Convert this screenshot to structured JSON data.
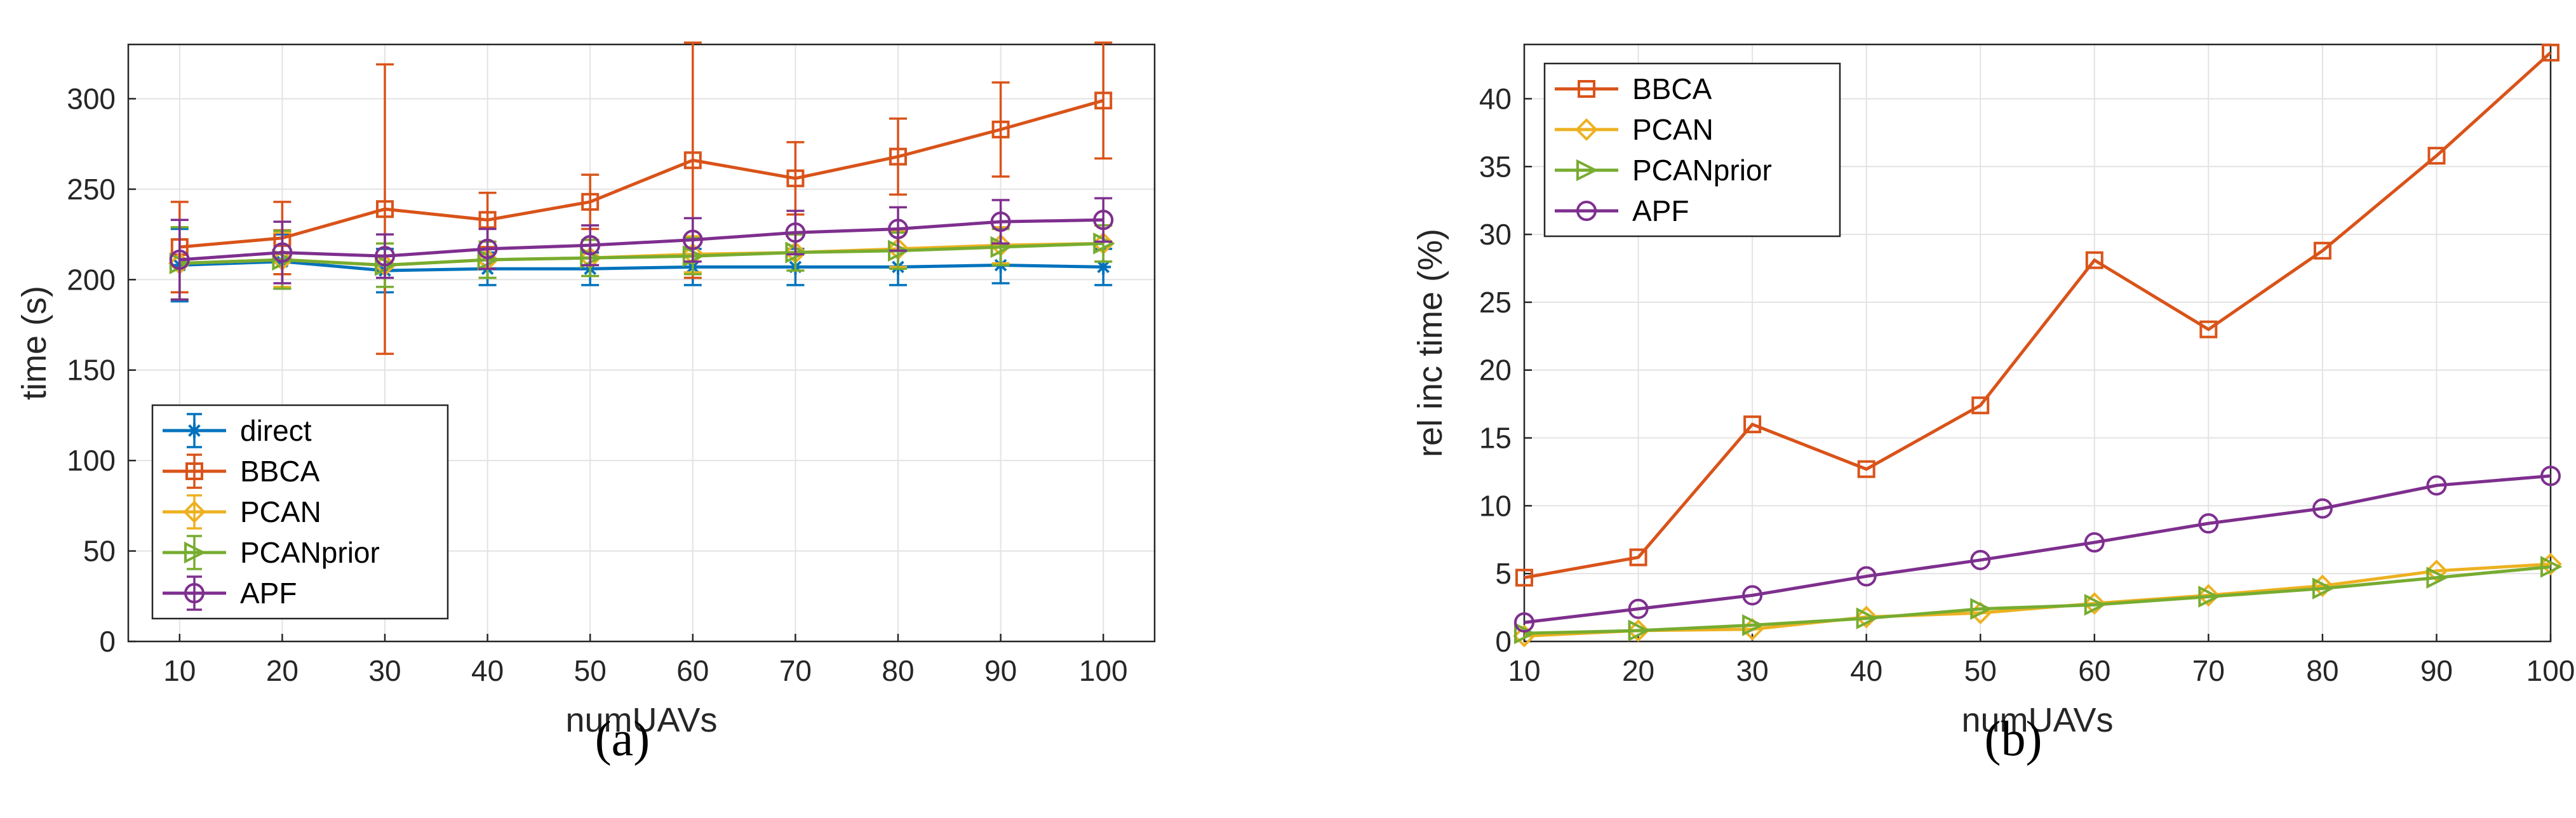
{
  "figure": {
    "captions": [
      "(a)",
      "(b)"
    ]
  },
  "series_colors": {
    "direct": "#0072BD",
    "BBCA": "#D95319",
    "PCAN": "#EDB120",
    "PCANprior": "#77AC30",
    "APF": "#7E2F8E"
  },
  "chart_data": [
    {
      "type": "line",
      "panel": "a",
      "xlabel": "numUAVs",
      "ylabel": "time (s)",
      "x": [
        10,
        20,
        30,
        40,
        50,
        60,
        70,
        80,
        90,
        100
      ],
      "xlim": [
        5,
        105
      ],
      "ylim": [
        0,
        330
      ],
      "xticks": [
        10,
        20,
        30,
        40,
        50,
        60,
        70,
        80,
        90,
        100
      ],
      "yticks": [
        0,
        50,
        100,
        150,
        200,
        250,
        300
      ],
      "grid": true,
      "legend_position": "bottom-left",
      "series": [
        {
          "name": "direct",
          "marker": "asterisk",
          "values": [
            208,
            210,
            205,
            206,
            206,
            207,
            207,
            207,
            208,
            207
          ],
          "errors": [
            20,
            15,
            12,
            9,
            9,
            10,
            10,
            10,
            10,
            10
          ]
        },
        {
          "name": "BBCA",
          "marker": "square",
          "values": [
            218,
            223,
            239,
            233,
            243,
            266,
            256,
            268,
            283,
            299
          ],
          "errors": [
            25,
            20,
            80,
            15,
            15,
            65,
            20,
            21,
            26,
            32
          ]
        },
        {
          "name": "PCAN",
          "marker": "diamond",
          "values": [
            209,
            211,
            208,
            211,
            212,
            214,
            215,
            217,
            219,
            220
          ],
          "errors": [
            20,
            15,
            12,
            10,
            10,
            10,
            10,
            10,
            10,
            10
          ]
        },
        {
          "name": "PCANprior",
          "marker": "triangle-right",
          "values": [
            209,
            211,
            208,
            211,
            212,
            213,
            215,
            216,
            218,
            220
          ],
          "errors": [
            20,
            16,
            12,
            10,
            10,
            10,
            10,
            10,
            10,
            10
          ]
        },
        {
          "name": "APF",
          "marker": "circle",
          "values": [
            211,
            215,
            213,
            217,
            219,
            222,
            226,
            228,
            232,
            233
          ],
          "errors": [
            22,
            17,
            12,
            11,
            11,
            12,
            12,
            12,
            12,
            12
          ]
        }
      ]
    },
    {
      "type": "line",
      "panel": "b",
      "xlabel": "numUAVs",
      "ylabel": "rel inc time (%)",
      "x": [
        10,
        20,
        30,
        40,
        50,
        60,
        70,
        80,
        90,
        100
      ],
      "xlim": [
        10,
        100
      ],
      "ylim": [
        0,
        44
      ],
      "xticks": [
        10,
        20,
        30,
        40,
        50,
        60,
        70,
        80,
        90,
        100
      ],
      "yticks": [
        0,
        5,
        10,
        15,
        20,
        25,
        30,
        35,
        40
      ],
      "grid": true,
      "legend_position": "top-left",
      "series": [
        {
          "name": "BBCA",
          "marker": "square",
          "values": [
            4.7,
            6.2,
            16.0,
            12.7,
            17.4,
            28.1,
            23.0,
            28.8,
            35.8,
            43.4
          ]
        },
        {
          "name": "PCAN",
          "marker": "diamond",
          "values": [
            0.4,
            0.8,
            0.9,
            1.8,
            2.1,
            2.8,
            3.4,
            4.1,
            5.2,
            5.7
          ]
        },
        {
          "name": "PCANprior",
          "marker": "triangle-right",
          "values": [
            0.6,
            0.8,
            1.2,
            1.7,
            2.4,
            2.7,
            3.3,
            3.9,
            4.7,
            5.5
          ]
        },
        {
          "name": "APF",
          "marker": "circle",
          "values": [
            1.4,
            2.4,
            3.4,
            4.8,
            6.0,
            7.3,
            8.7,
            9.8,
            11.5,
            12.2
          ]
        }
      ]
    }
  ]
}
